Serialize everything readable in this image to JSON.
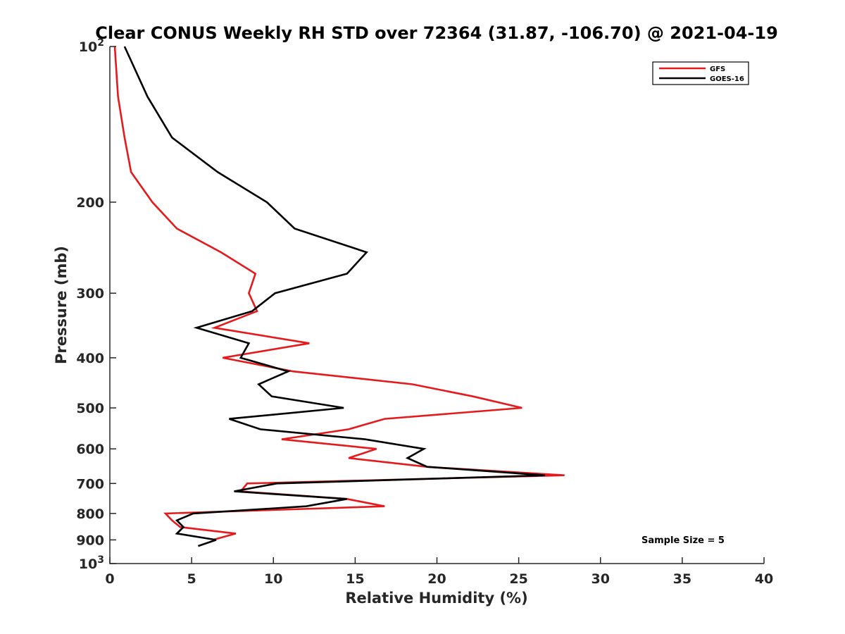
{
  "chart_data": {
    "type": "line",
    "title": "Clear CONUS Weekly RH STD over 72364 (31.87, -106.70) @ 2021-04-19",
    "xlabel": "Relative Humidity (%)",
    "ylabel": "Pressure (mb)",
    "xlim": [
      0,
      40
    ],
    "ylim": [
      100,
      1000
    ],
    "y_scale": "log",
    "y_reversed": true,
    "x_ticks": [
      "0",
      "5",
      "10",
      "15",
      "20",
      "25",
      "30",
      "35",
      "40"
    ],
    "y_ticks": [
      {
        "value": 100,
        "base": "10",
        "exp": "2"
      },
      {
        "value": 200,
        "label": "200"
      },
      {
        "value": 300,
        "label": "300"
      },
      {
        "value": 400,
        "label": "400"
      },
      {
        "value": 500,
        "label": "500"
      },
      {
        "value": 600,
        "label": "600"
      },
      {
        "value": 700,
        "label": "700"
      },
      {
        "value": 800,
        "label": "800"
      },
      {
        "value": 900,
        "label": "900"
      },
      {
        "value": 1000,
        "base": "10",
        "exp": "3"
      }
    ],
    "grid": false,
    "legend_position": "top-right",
    "annotation": "Sample Size = 5",
    "series": [
      {
        "name": "GFS",
        "color": "#e41a1c",
        "points": [
          [
            0.3,
            100
          ],
          [
            0.5,
            125
          ],
          [
            0.9,
            150
          ],
          [
            1.3,
            175
          ],
          [
            2.6,
            200
          ],
          [
            4.1,
            225
          ],
          [
            6.8,
            250
          ],
          [
            8.9,
            275
          ],
          [
            8.5,
            300
          ],
          [
            9.0,
            325
          ],
          [
            6.4,
            350
          ],
          [
            12.2,
            375
          ],
          [
            6.9,
            400
          ],
          [
            11.2,
            425
          ],
          [
            18.5,
            450
          ],
          [
            22.2,
            475
          ],
          [
            25.2,
            500
          ],
          [
            16.8,
            525
          ],
          [
            14.6,
            550
          ],
          [
            10.5,
            575
          ],
          [
            16.3,
            600
          ],
          [
            14.6,
            625
          ],
          [
            19.4,
            650
          ],
          [
            27.8,
            675
          ],
          [
            8.4,
            700
          ],
          [
            8.0,
            725
          ],
          [
            14.5,
            750
          ],
          [
            16.8,
            775
          ],
          [
            3.4,
            800
          ],
          [
            3.8,
            825
          ],
          [
            4.3,
            850
          ],
          [
            7.7,
            875
          ],
          [
            6.3,
            900
          ]
        ]
      },
      {
        "name": "GOES-16",
        "color": "#000000",
        "points": [
          [
            0.9,
            100
          ],
          [
            2.3,
            125
          ],
          [
            3.8,
            150
          ],
          [
            6.6,
            175
          ],
          [
            9.6,
            200
          ],
          [
            11.3,
            225
          ],
          [
            15.7,
            250
          ],
          [
            14.5,
            275
          ],
          [
            10.1,
            300
          ],
          [
            8.7,
            325
          ],
          [
            5.3,
            350
          ],
          [
            8.5,
            375
          ],
          [
            8.0,
            400
          ],
          [
            10.9,
            425
          ],
          [
            9.1,
            450
          ],
          [
            9.9,
            475
          ],
          [
            14.3,
            500
          ],
          [
            7.3,
            525
          ],
          [
            9.2,
            550
          ],
          [
            15.6,
            575
          ],
          [
            19.2,
            600
          ],
          [
            18.2,
            625
          ],
          [
            19.4,
            650
          ],
          [
            26.6,
            675
          ],
          [
            10.2,
            700
          ],
          [
            7.6,
            725
          ],
          [
            14.5,
            750
          ],
          [
            12.0,
            775
          ],
          [
            5.1,
            800
          ],
          [
            4.1,
            825
          ],
          [
            4.5,
            850
          ],
          [
            4.1,
            875
          ],
          [
            6.5,
            900
          ],
          [
            5.4,
            925
          ]
        ]
      }
    ]
  }
}
